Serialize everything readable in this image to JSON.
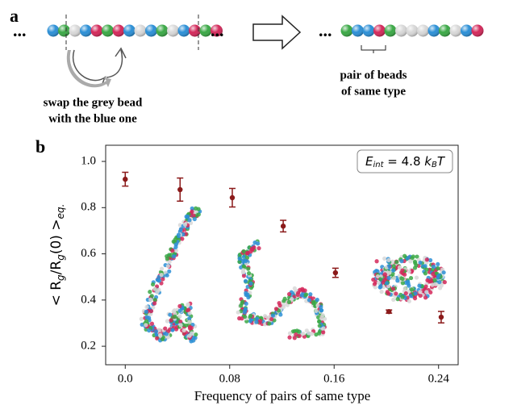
{
  "panel_a": {
    "label": "a",
    "ellipsis": "...",
    "swap_caption": [
      "swap the grey bead",
      "with the blue one"
    ],
    "pair_caption": [
      "pair of beads",
      "of same type"
    ]
  },
  "panel_b_label": "b",
  "chart_data": {
    "type": "scatter",
    "xlabel": "Frequency of pairs of same type",
    "ylabel_parts": [
      "< R",
      "g",
      "/R",
      "g",
      "(0) >",
      "eq."
    ],
    "annotation_parts": [
      "E",
      "int",
      " = 4.8 ",
      "k",
      "B",
      "T"
    ],
    "x": [
      0.0,
      0.042,
      0.082,
      0.121,
      0.161,
      0.202,
      0.242
    ],
    "series": [
      {
        "color": "#8b1a1a",
        "values": [
          0.923,
          0.878,
          0.843,
          0.72,
          0.518,
          0.35,
          0.326
        ],
        "errors": [
          0.03,
          0.05,
          0.04,
          0.025,
          0.02,
          0.007,
          0.025
        ]
      }
    ],
    "xlim": [
      -0.015,
      0.255
    ],
    "ylim": [
      0.12,
      1.07
    ],
    "xticks": [
      {
        "value": 0,
        "label": "0.0"
      },
      0.08,
      0.16,
      0.24
    ],
    "yticks": [
      0.2,
      0.4,
      0.6,
      0.8,
      {
        "value": 1,
        "label": "1.0"
      }
    ]
  }
}
